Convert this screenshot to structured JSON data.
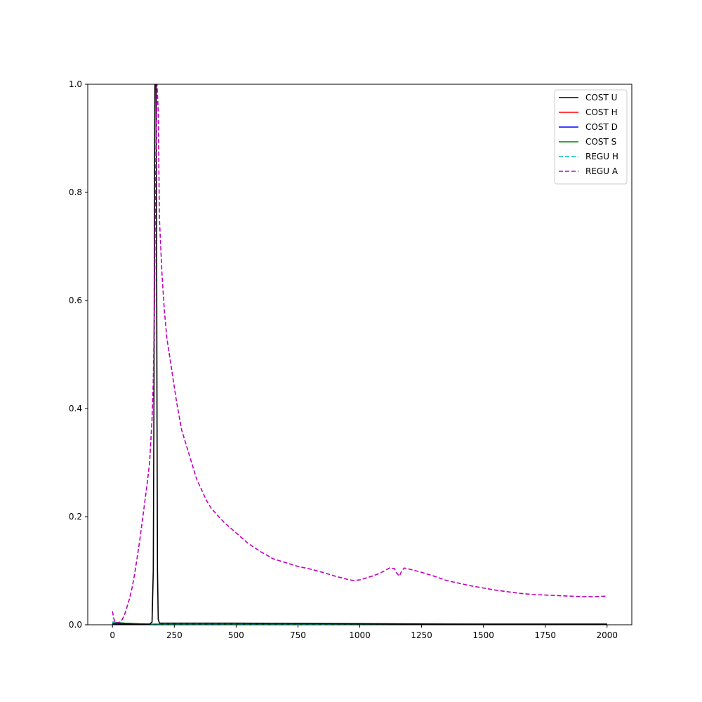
{
  "chart_data": {
    "type": "line",
    "title": "",
    "xlabel": "",
    "ylabel": "",
    "xlim": [
      -100,
      2100
    ],
    "ylim": [
      0,
      1
    ],
    "xticks": [
      0,
      250,
      500,
      750,
      1000,
      1250,
      1500,
      1750,
      2000
    ],
    "yticks": [
      0.0,
      0.2,
      0.4,
      0.6,
      0.8,
      1.0
    ],
    "ytick_labels": [
      "0.0",
      "0.2",
      "0.4",
      "0.6",
      "0.8",
      "1.0"
    ],
    "grid": false,
    "legend_position": "top-right",
    "series": [
      {
        "name": "COST U",
        "color": "#000000",
        "dash": "solid",
        "x": [
          0,
          100,
          150,
          160,
          165,
          168,
          170,
          172,
          174,
          176,
          178,
          180,
          182,
          185,
          190,
          200,
          300,
          500,
          1000,
          1500,
          2000
        ],
        "y": [
          0.002,
          0.001,
          0.001,
          0.005,
          0.1,
          0.45,
          0.8,
          1.05,
          1.1,
          1.05,
          0.8,
          0.4,
          0.1,
          0.01,
          0.003,
          0.003,
          0.003,
          0.003,
          0.002,
          0.001,
          0.001
        ]
      },
      {
        "name": "COST H",
        "color": "#ff0000",
        "dash": "solid",
        "x": [
          0,
          500,
          1000,
          1500,
          2000
        ],
        "y": [
          0.001,
          0.001,
          0.001,
          0.001,
          0.001
        ]
      },
      {
        "name": "COST D",
        "color": "#0000ff",
        "dash": "solid",
        "x": [
          0,
          500,
          1000,
          1500,
          2000
        ],
        "y": [
          0.001,
          0.001,
          0.001,
          0.001,
          0.001
        ]
      },
      {
        "name": "COST S",
        "color": "#008000",
        "dash": "solid",
        "x": [
          0,
          50,
          100,
          150,
          200,
          500,
          1000,
          1500,
          2000
        ],
        "y": [
          0.005,
          0.003,
          0.002,
          0.001,
          0.001,
          0.001,
          0.001,
          0.001,
          0.001
        ]
      },
      {
        "name": "REGU H",
        "color": "#00bfbf",
        "dash": "dashed",
        "x": [
          0,
          50,
          100,
          150,
          200,
          500,
          1000,
          1500,
          2000
        ],
        "y": [
          0.004,
          0.002,
          0.001,
          0.001,
          0.001,
          0.001,
          0.001,
          0.001,
          0.001
        ]
      },
      {
        "name": "REGU A",
        "color": "#bf00bf",
        "dash": "dashed",
        "x": [
          0,
          5,
          10,
          20,
          30,
          40,
          50,
          60,
          70,
          80,
          90,
          100,
          110,
          120,
          130,
          140,
          150,
          160,
          165,
          170,
          175,
          180,
          185,
          190,
          200,
          210,
          220,
          240,
          260,
          280,
          300,
          320,
          340,
          360,
          380,
          400,
          420,
          450,
          500,
          550,
          600,
          650,
          700,
          750,
          800,
          850,
          900,
          950,
          975,
          1000,
          1050,
          1080,
          1100,
          1120,
          1140,
          1150,
          1160,
          1170,
          1180,
          1200,
          1250,
          1300,
          1350,
          1400,
          1450,
          1500,
          1550,
          1600,
          1650,
          1700,
          1750,
          1800,
          1850,
          1900,
          1950,
          2000
        ],
        "y": [
          0.025,
          0.012,
          0.005,
          0.003,
          0.005,
          0.01,
          0.02,
          0.035,
          0.05,
          0.07,
          0.095,
          0.125,
          0.155,
          0.19,
          0.225,
          0.26,
          0.3,
          0.38,
          0.45,
          0.6,
          0.85,
          1.0,
          0.95,
          0.75,
          0.65,
          0.58,
          0.53,
          0.47,
          0.41,
          0.36,
          0.33,
          0.3,
          0.27,
          0.25,
          0.23,
          0.215,
          0.205,
          0.19,
          0.17,
          0.15,
          0.135,
          0.122,
          0.115,
          0.108,
          0.103,
          0.097,
          0.09,
          0.084,
          0.082,
          0.083,
          0.09,
          0.095,
          0.1,
          0.105,
          0.104,
          0.095,
          0.09,
          0.1,
          0.105,
          0.103,
          0.097,
          0.09,
          0.082,
          0.077,
          0.072,
          0.068,
          0.064,
          0.061,
          0.058,
          0.056,
          0.055,
          0.054,
          0.053,
          0.052,
          0.052,
          0.053
        ]
      }
    ]
  }
}
